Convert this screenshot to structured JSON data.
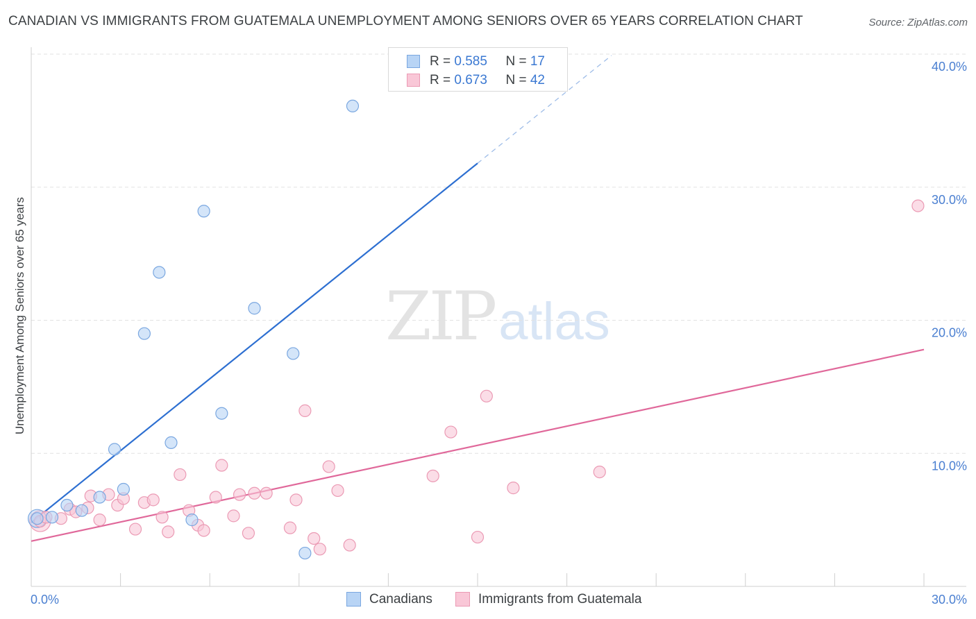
{
  "title": "CANADIAN VS IMMIGRANTS FROM GUATEMALA UNEMPLOYMENT AMONG SENIORS OVER 65 YEARS CORRELATION CHART",
  "source": "Source: ZipAtlas.com",
  "watermark": {
    "zip": "ZIP",
    "atlas": "atlas"
  },
  "legend": {
    "canadians": {
      "r_label": "R = ",
      "r_value": "0.585",
      "n_label": "N = ",
      "n_value": "17"
    },
    "guatemala": {
      "r_label": "R = ",
      "r_value": "0.673",
      "n_label": "N = ",
      "n_value": "42"
    }
  },
  "bottom_legend": {
    "canadians": "Canadians",
    "guatemala": "Immigrants from Guatemala"
  },
  "chart_data": {
    "type": "scatter",
    "ylabel": "Unemployment Among Seniors over 65 years",
    "xlabel": "",
    "xlim": [
      0,
      30
    ],
    "ylim": [
      0,
      40
    ],
    "x_tick_labels": [
      "0.0%",
      "30.0%"
    ],
    "y_ticks": [
      10,
      20,
      30,
      40
    ],
    "y_tick_labels": [
      "10.0%",
      "20.0%",
      "30.0%",
      "40.0%"
    ],
    "grid": true,
    "legend_position": "top-center",
    "colors": {
      "canadians_fill": "#b8d4f5",
      "canadians_stroke": "#7aa7e0",
      "canadians_line": "#2d6fd1",
      "guatemala_fill": "#f9c7d7",
      "guatemala_stroke": "#eb9ab4",
      "guatemala_line": "#e0689a"
    },
    "series": [
      {
        "name": "Canadians",
        "points": [
          [
            0.2,
            5.1
          ],
          [
            0.7,
            5.2
          ],
          [
            1.2,
            6.1
          ],
          [
            1.7,
            5.7
          ],
          [
            2.3,
            6.7
          ],
          [
            2.8,
            10.3
          ],
          [
            3.1,
            7.3
          ],
          [
            3.8,
            19.0
          ],
          [
            4.3,
            23.6
          ],
          [
            4.7,
            10.8
          ],
          [
            5.4,
            5.0
          ],
          [
            5.8,
            28.2
          ],
          [
            6.4,
            13.0
          ],
          [
            7.5,
            20.9
          ],
          [
            8.8,
            17.5
          ],
          [
            9.2,
            2.5
          ],
          [
            10.8,
            36.1
          ]
        ],
        "trend": {
          "x0": 0.0,
          "y0": 4.8,
          "x1": 15.0,
          "y1": 31.8,
          "dash_to_x": 19.5,
          "dash_to_y": 39.9
        }
      },
      {
        "name": "Immigrants from Guatemala",
        "points": [
          [
            0.3,
            4.9
          ],
          [
            0.5,
            5.2
          ],
          [
            1.0,
            5.1
          ],
          [
            1.3,
            5.8
          ],
          [
            1.5,
            5.6
          ],
          [
            1.9,
            5.9
          ],
          [
            2.0,
            6.8
          ],
          [
            2.3,
            5.0
          ],
          [
            2.6,
            6.9
          ],
          [
            2.9,
            6.1
          ],
          [
            3.1,
            6.6
          ],
          [
            3.5,
            4.3
          ],
          [
            3.8,
            6.3
          ],
          [
            4.1,
            6.5
          ],
          [
            4.4,
            5.2
          ],
          [
            4.6,
            4.1
          ],
          [
            5.0,
            8.4
          ],
          [
            5.3,
            5.7
          ],
          [
            5.6,
            4.6
          ],
          [
            5.8,
            4.2
          ],
          [
            6.2,
            6.7
          ],
          [
            6.4,
            9.1
          ],
          [
            6.8,
            5.3
          ],
          [
            7.0,
            6.9
          ],
          [
            7.3,
            4.0
          ],
          [
            7.5,
            7.0
          ],
          [
            7.9,
            7.0
          ],
          [
            8.7,
            4.4
          ],
          [
            8.9,
            6.5
          ],
          [
            9.2,
            13.2
          ],
          [
            9.5,
            3.6
          ],
          [
            9.7,
            2.8
          ],
          [
            10.0,
            9.0
          ],
          [
            10.3,
            7.2
          ],
          [
            10.7,
            3.1
          ],
          [
            13.5,
            8.3
          ],
          [
            14.1,
            11.6
          ],
          [
            15.0,
            3.7
          ],
          [
            15.3,
            14.3
          ],
          [
            16.2,
            7.4
          ],
          [
            19.1,
            8.6
          ],
          [
            29.8,
            28.6
          ]
        ],
        "trend": {
          "x0": 0.0,
          "y0": 3.4,
          "x1": 30.0,
          "y1": 17.8
        }
      }
    ]
  }
}
